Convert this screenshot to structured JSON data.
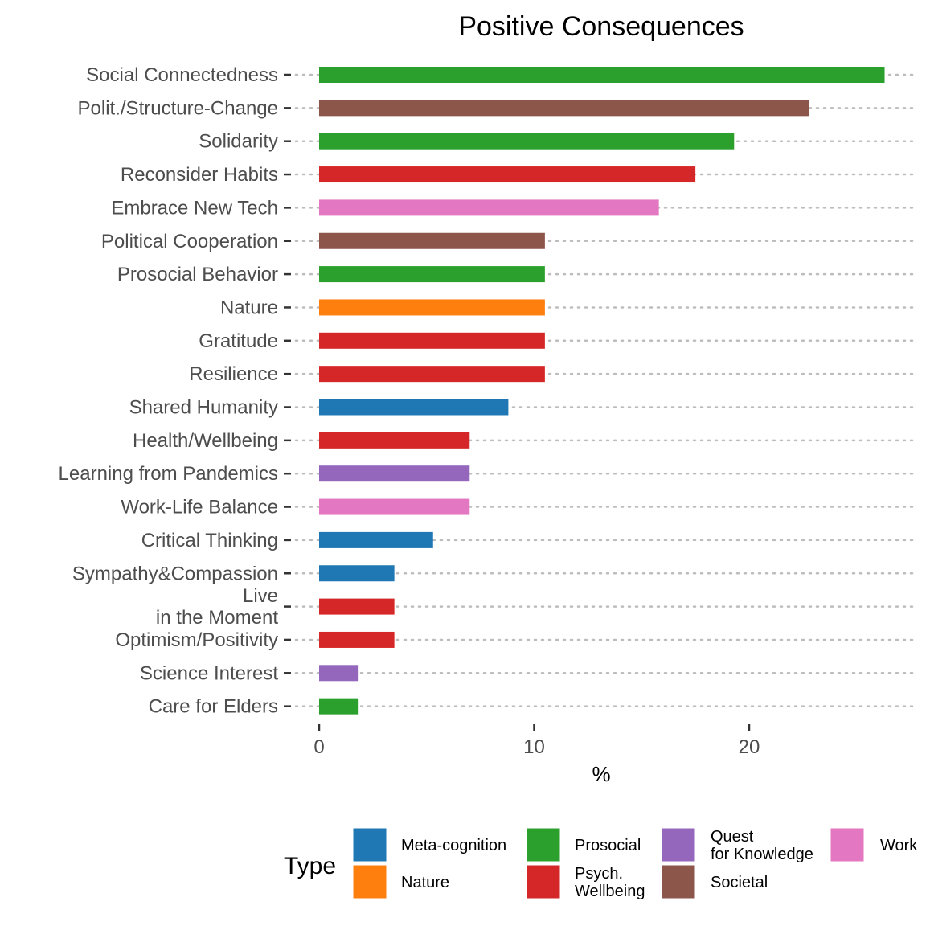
{
  "chart_data": {
    "type": "bar",
    "orientation": "horizontal",
    "title": "Positive Consequences",
    "xlabel": "%",
    "ylabel": "",
    "xlim": [
      0,
      27.5
    ],
    "xticks": [
      "0",
      "10",
      "20"
    ],
    "grid": "dotted horizontal lines per category",
    "legend_position": "bottom",
    "legend_title": "Type",
    "types": [
      {
        "key": "meta",
        "label": "Meta-cognition",
        "color": "#1f77b4"
      },
      {
        "key": "nature",
        "label": "Nature",
        "color": "#ff7f0e"
      },
      {
        "key": "prosocial",
        "label": "Prosocial",
        "color": "#2ca02c"
      },
      {
        "key": "psych",
        "label": "Psych.\nWellbeing",
        "color": "#d62728"
      },
      {
        "key": "quest",
        "label": "Quest\nfor Knowledge",
        "color": "#9467bd"
      },
      {
        "key": "societal",
        "label": "Societal",
        "color": "#8c564b"
      },
      {
        "key": "work",
        "label": "Work",
        "color": "#e377c2"
      }
    ],
    "bars": [
      {
        "label": "Social Connectedness",
        "value": 26.3,
        "type": "prosocial"
      },
      {
        "label": "Polit./Structure-Change",
        "value": 22.8,
        "type": "societal"
      },
      {
        "label": "Solidarity",
        "value": 19.3,
        "type": "prosocial"
      },
      {
        "label": "Reconsider Habits",
        "value": 17.5,
        "type": "psych"
      },
      {
        "label": "Embrace New Tech",
        "value": 15.8,
        "type": "work"
      },
      {
        "label": "Political Cooperation",
        "value": 10.5,
        "type": "societal"
      },
      {
        "label": "Prosocial Behavior",
        "value": 10.5,
        "type": "prosocial"
      },
      {
        "label": "Nature",
        "value": 10.5,
        "type": "nature"
      },
      {
        "label": "Gratitude",
        "value": 10.5,
        "type": "psych"
      },
      {
        "label": "Resilience",
        "value": 10.5,
        "type": "psych"
      },
      {
        "label": "Shared Humanity",
        "value": 8.8,
        "type": "meta"
      },
      {
        "label": "Health/Wellbeing",
        "value": 7.0,
        "type": "psych"
      },
      {
        "label": "Learning from Pandemics",
        "value": 7.0,
        "type": "quest"
      },
      {
        "label": "Work-Life Balance",
        "value": 7.0,
        "type": "work"
      },
      {
        "label": "Critical Thinking",
        "value": 5.3,
        "type": "meta"
      },
      {
        "label": "Sympathy&Compassion",
        "value": 3.5,
        "type": "meta"
      },
      {
        "label": "Live\nin the Moment",
        "value": 3.5,
        "type": "psych"
      },
      {
        "label": "Optimism/Positivity",
        "value": 3.5,
        "type": "psych"
      },
      {
        "label": "Science Interest",
        "value": 1.8,
        "type": "quest"
      },
      {
        "label": "Care for Elders",
        "value": 1.8,
        "type": "prosocial"
      }
    ]
  }
}
